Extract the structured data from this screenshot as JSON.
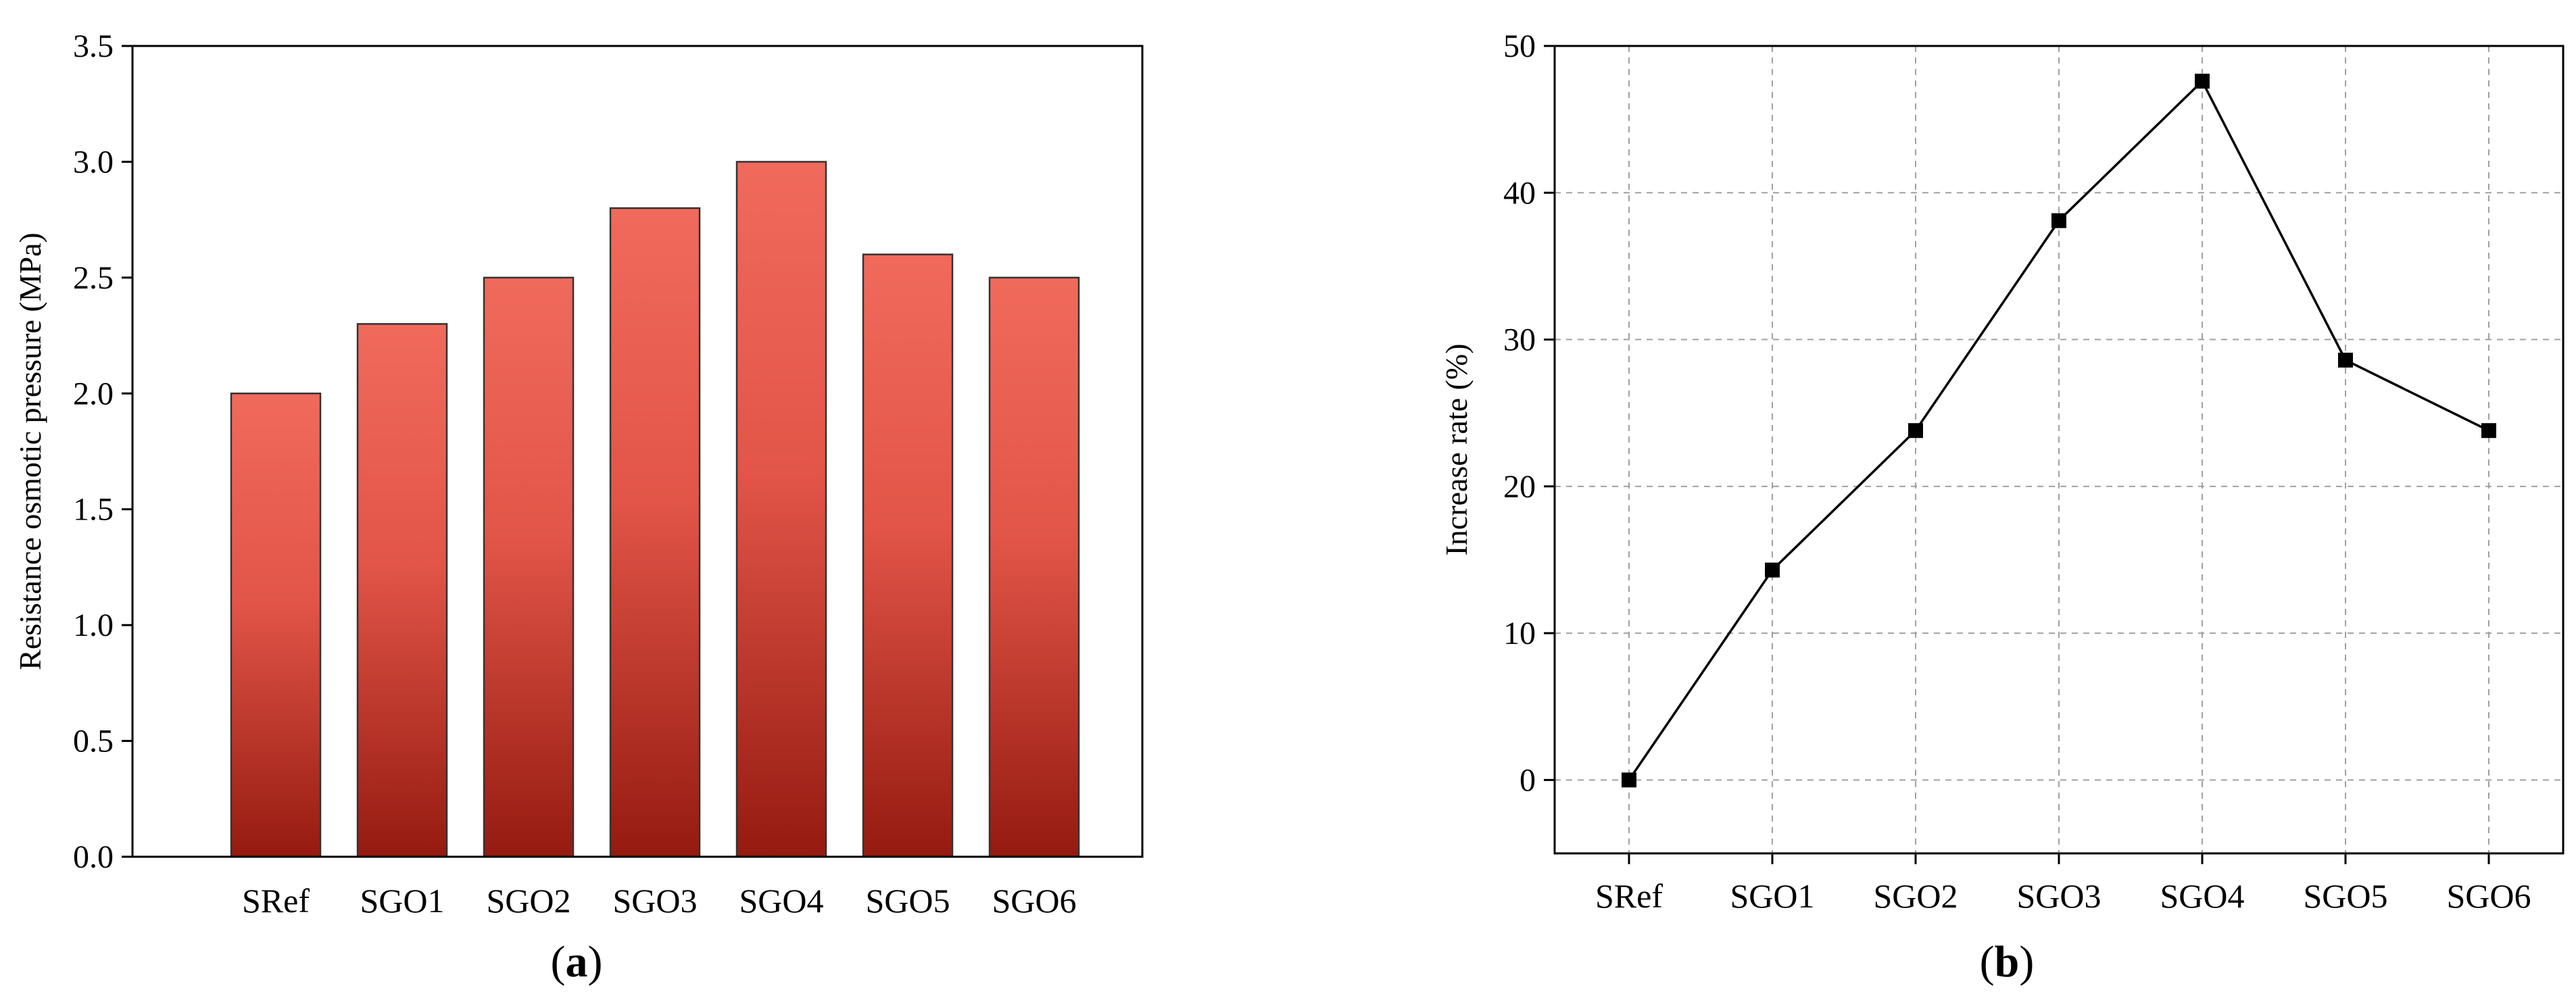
{
  "chart_data": [
    {
      "panel_label": "(a)",
      "panel_letter": "a",
      "type": "bar",
      "categories": [
        "SRef",
        "SGO1",
        "SGO2",
        "SGO3",
        "SGO4",
        "SGO5",
        "SGO6"
      ],
      "values": [
        2.0,
        2.3,
        2.5,
        2.8,
        3.0,
        2.6,
        2.5
      ],
      "ylabel": "Resistance osmotic pressure (MPa)",
      "xlabel": "",
      "ylim": [
        0,
        3.5
      ],
      "yticks": [
        0.0,
        0.5,
        1.0,
        1.5,
        2.0,
        2.5,
        3.0,
        3.5
      ],
      "ytick_labels": [
        "0.0",
        "0.5",
        "1.0",
        "1.5",
        "2.0",
        "2.5",
        "3.0",
        "3.5"
      ],
      "grid": false,
      "colors": {
        "bar_top": "#f06a5c",
        "bar_bottom": "#951a10",
        "bar_edge": "#333333"
      }
    },
    {
      "panel_label": "(b)",
      "panel_letter": "b",
      "type": "line",
      "categories": [
        "SRef",
        "SGO1",
        "SGO2",
        "SGO3",
        "SGO4",
        "SGO5",
        "SGO6"
      ],
      "values": [
        0,
        14.3,
        23.8,
        38.1,
        47.6,
        28.6,
        23.8
      ],
      "ylabel": "Increase rate (%)",
      "xlabel": "",
      "ylim": [
        -5,
        50
      ],
      "yticks": [
        0,
        10,
        20,
        30,
        40,
        50
      ],
      "ytick_labels": [
        "0",
        "10",
        "20",
        "30",
        "40",
        "50"
      ],
      "grid": true,
      "colors": {
        "line": "#000000",
        "marker": "#000000",
        "grid": "#a0a0a0"
      }
    }
  ]
}
